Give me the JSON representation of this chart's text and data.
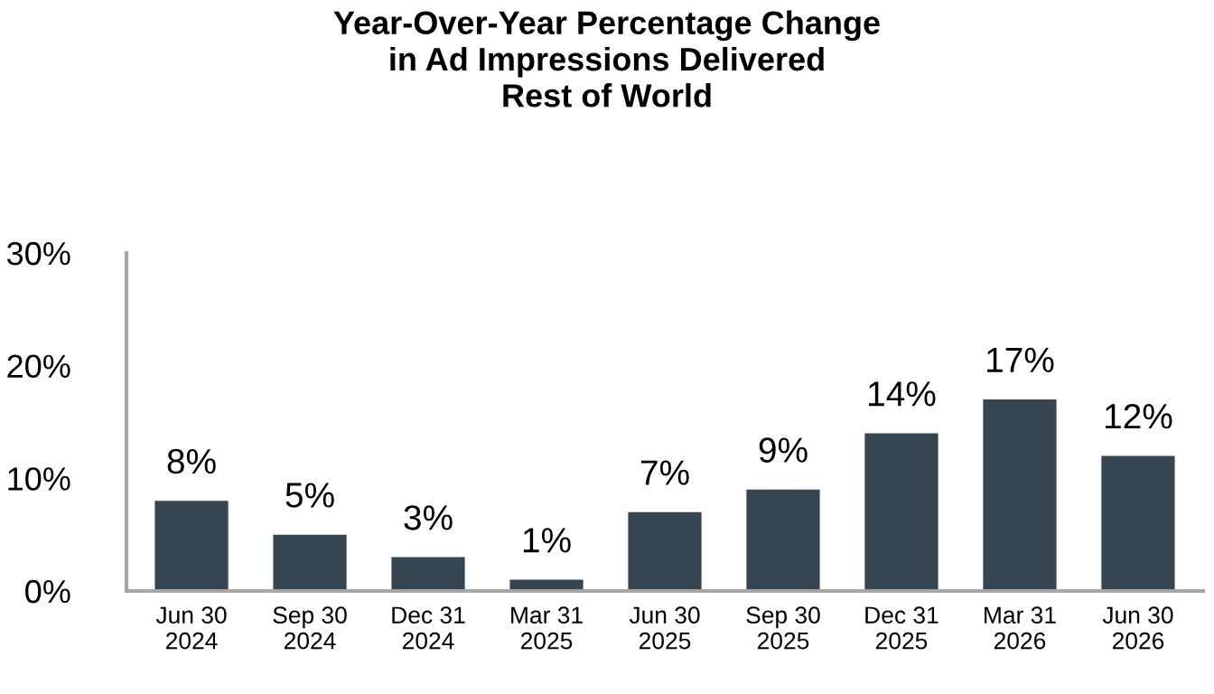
{
  "chart_data": {
    "type": "bar",
    "title": "Year-Over-Year Percentage Change\nin Ad Impressions Delivered\nRest of World",
    "categories": [
      "Jun 30\n2024",
      "Sep 30\n2024",
      "Dec 31\n2024",
      "Mar 31\n2025",
      "Jun 30\n2025",
      "Sep 30\n2025",
      "Dec 31\n2025",
      "Mar 31\n2026",
      "Jun 30\n2026"
    ],
    "values": [
      8,
      5,
      3,
      1,
      7,
      9,
      14,
      17,
      12
    ],
    "value_labels": [
      "8%",
      "5%",
      "3%",
      "1%",
      "7%",
      "9%",
      "14%",
      "17%",
      "12%"
    ],
    "color": "#36454f",
    "ylim": [
      0,
      30
    ],
    "yticks": [
      {
        "value": 0,
        "label": "0%"
      },
      {
        "value": 10,
        "label": "10%"
      },
      {
        "value": 20,
        "label": "20%"
      },
      {
        "value": 30,
        "label": "30%"
      }
    ],
    "grid": false
  }
}
